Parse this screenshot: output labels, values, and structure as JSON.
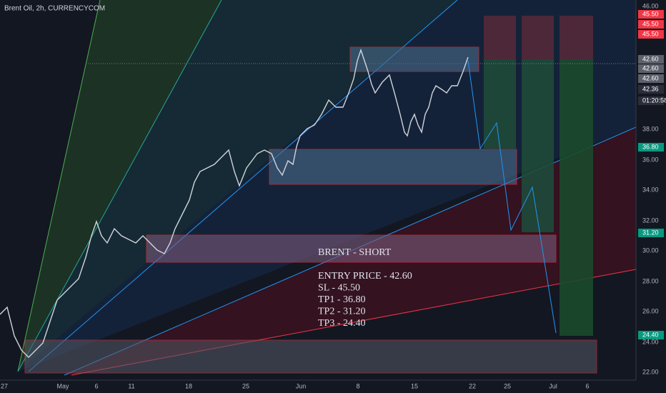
{
  "header": {
    "title": "Brent Oil, 2h, CURRENCYCOM"
  },
  "price_axis": {
    "labels": [
      "46.00",
      "45.50",
      "45.50",
      "45.50",
      "42.60",
      "42.60",
      "42.60",
      "42.36",
      "01:20:58",
      "38.00",
      "36.80",
      "36.00",
      "34.00",
      "32.00",
      "31.20",
      "30.00",
      "28.00",
      "26.00",
      "24.40",
      "24.00",
      "22.00"
    ]
  },
  "time_axis": {
    "labels": [
      "27",
      "May",
      "6",
      "11",
      "18",
      "25",
      "Jun",
      "8",
      "15",
      "22",
      "25",
      "Jul",
      "6"
    ]
  },
  "annotation": {
    "title": "BRENT - SHORT",
    "lines": [
      "ENTRY PRICE - 42.60",
      "SL - 45.50",
      "TP1 - 36.80",
      "TP2 - 31.20",
      "TP3 - 24.40"
    ]
  }
}
